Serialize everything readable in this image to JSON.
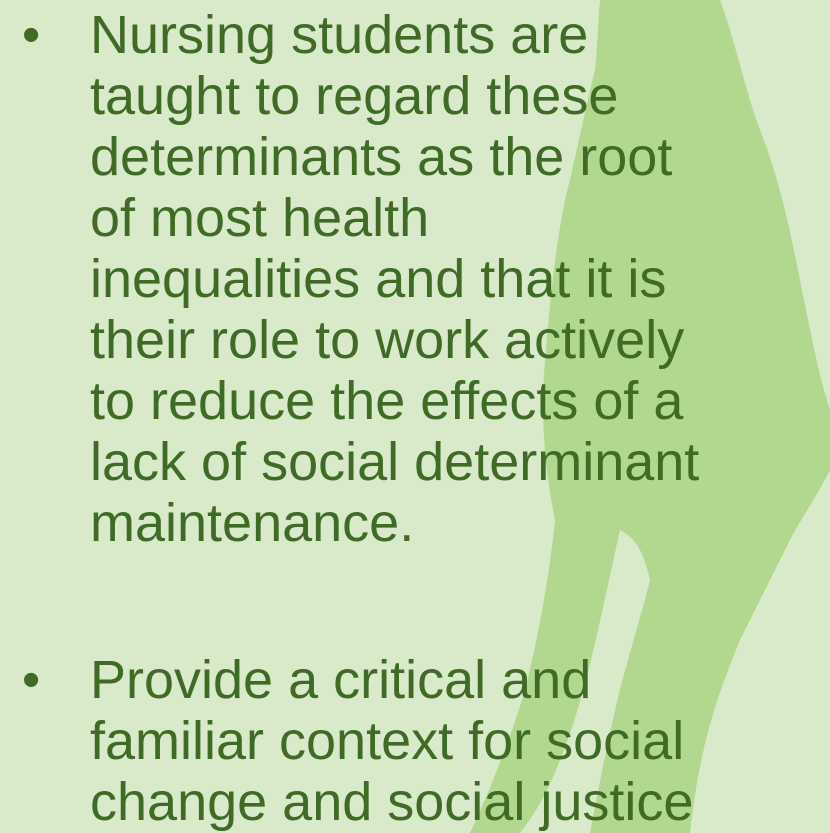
{
  "bullets": [
    {
      "marker": "•",
      "lines": [
        "Nursing students are",
        "taught to regard these",
        "determinants as the root",
        "of most health",
        "inequalities and that it is",
        "their role to work actively",
        "to reduce the effects of a",
        "lack of social determinant",
        "maintenance."
      ]
    },
    {
      "marker": "•",
      "lines": [
        "Provide a critical and",
        "familiar context for social",
        "change and social justice"
      ]
    }
  ]
}
